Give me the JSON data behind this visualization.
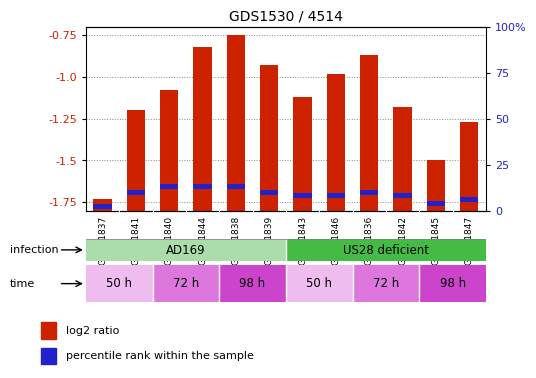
{
  "title": "GDS1530 / 4514",
  "samples": [
    "GSM71837",
    "GSM71841",
    "GSM71840",
    "GSM71844",
    "GSM71838",
    "GSM71839",
    "GSM71843",
    "GSM71846",
    "GSM71836",
    "GSM71842",
    "GSM71845",
    "GSM71847"
  ],
  "log2_ratio": [
    -1.73,
    -1.2,
    -1.08,
    -0.82,
    -0.75,
    -0.93,
    -1.12,
    -0.98,
    -0.87,
    -1.18,
    -1.5,
    -1.27
  ],
  "percentile_rank_pct": [
    2,
    10,
    13,
    13,
    13,
    10,
    8,
    8,
    10,
    8,
    4,
    6
  ],
  "ylim_left": [
    -1.8,
    -0.7
  ],
  "yticks_left": [
    -1.75,
    -1.5,
    -1.25,
    -1.0,
    -0.75
  ],
  "ylim_right": [
    0,
    100
  ],
  "yticks_right": [
    0,
    25,
    50,
    75,
    100
  ],
  "yticklabels_right": [
    "0",
    "25",
    "50",
    "75",
    "100%"
  ],
  "bar_color": "#cc2200",
  "blue_color": "#2222cc",
  "bar_width": 0.55,
  "infection_groups": [
    {
      "label": "AD169",
      "start": 0,
      "end": 6,
      "color": "#aaddaa"
    },
    {
      "label": "US28 deficient",
      "start": 6,
      "end": 12,
      "color": "#44bb44"
    }
  ],
  "time_groups": [
    {
      "label": "50 h",
      "start": 0,
      "end": 2,
      "color": "#eebcee"
    },
    {
      "label": "72 h",
      "start": 2,
      "end": 4,
      "color": "#dd77dd"
    },
    {
      "label": "98 h",
      "start": 4,
      "end": 6,
      "color": "#cc44cc"
    },
    {
      "label": "50 h",
      "start": 6,
      "end": 8,
      "color": "#eebcee"
    },
    {
      "label": "72 h",
      "start": 8,
      "end": 10,
      "color": "#dd77dd"
    },
    {
      "label": "98 h",
      "start": 10,
      "end": 12,
      "color": "#cc44cc"
    }
  ],
  "legend_red_label": "log2 ratio",
  "legend_blue_label": "percentile rank within the sample",
  "left_label_color": "#cc2200",
  "right_label_color": "#2222cc",
  "grid_color": "#888888",
  "title_fontsize": 10,
  "tick_fontsize": 8,
  "sample_fontsize": 6.5,
  "row_label_fontsize": 8,
  "time_inf_fontsize": 8.5,
  "legend_fontsize": 8
}
